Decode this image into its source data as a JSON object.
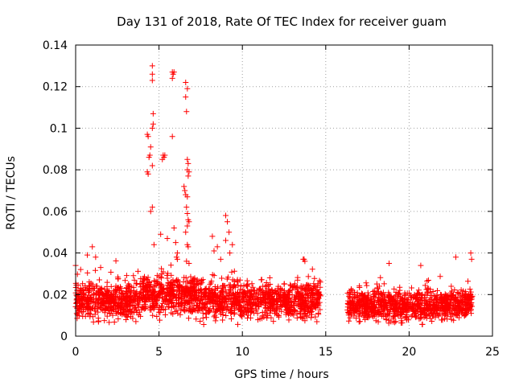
{
  "chart_data": {
    "type": "scatter",
    "title": "Day 131 of 2018, Rate Of TEC Index for receiver guam",
    "xlabel": "GPS time / hours",
    "ylabel": "ROTI / TECUs",
    "xlim": [
      0,
      25
    ],
    "ylim": [
      0,
      0.14
    ],
    "xticks": [
      "0",
      "5",
      "10",
      "15",
      "20",
      "25"
    ],
    "yticks": [
      "0",
      "0.02",
      "0.04",
      "0.06",
      "0.08",
      "0.1",
      "0.12",
      "0.14"
    ],
    "grid": true,
    "marker": "+",
    "color": "#ff0000",
    "series": [
      {
        "name": "ROTI",
        "segments": [
          {
            "x_range": [
              0,
              14.7
            ],
            "baseline": 0.017,
            "spread": 0.012
          },
          {
            "x_range": [
              16.3,
              23.8
            ],
            "baseline": 0.015,
            "spread": 0.01
          }
        ],
        "outliers": [
          [
            4.6,
            0.13
          ],
          [
            4.6,
            0.126
          ],
          [
            4.6,
            0.123
          ],
          [
            4.65,
            0.107
          ],
          [
            4.65,
            0.102
          ],
          [
            4.6,
            0.1
          ],
          [
            4.3,
            0.097
          ],
          [
            4.35,
            0.096
          ],
          [
            4.5,
            0.091
          ],
          [
            4.4,
            0.086
          ],
          [
            4.45,
            0.087
          ],
          [
            4.3,
            0.079
          ],
          [
            4.35,
            0.078
          ],
          [
            4.6,
            0.082
          ],
          [
            4.5,
            0.06
          ],
          [
            4.6,
            0.062
          ],
          [
            4.7,
            0.044
          ],
          [
            5.25,
            0.087
          ],
          [
            5.3,
            0.086
          ],
          [
            5.2,
            0.085
          ],
          [
            5.35,
            0.087
          ],
          [
            5.1,
            0.049
          ],
          [
            5.5,
            0.047
          ],
          [
            5.8,
            0.127
          ],
          [
            5.85,
            0.126
          ],
          [
            5.8,
            0.124
          ],
          [
            5.9,
            0.127
          ],
          [
            5.8,
            0.096
          ],
          [
            5.9,
            0.052
          ],
          [
            6.0,
            0.045
          ],
          [
            6.1,
            0.04
          ],
          [
            6.05,
            0.038
          ],
          [
            6.1,
            0.037
          ],
          [
            6.6,
            0.122
          ],
          [
            6.7,
            0.119
          ],
          [
            6.6,
            0.115
          ],
          [
            6.65,
            0.108
          ],
          [
            6.7,
            0.085
          ],
          [
            6.75,
            0.083
          ],
          [
            6.7,
            0.08
          ],
          [
            6.8,
            0.079
          ],
          [
            6.75,
            0.077
          ],
          [
            6.5,
            0.072
          ],
          [
            6.55,
            0.07
          ],
          [
            6.6,
            0.068
          ],
          [
            6.7,
            0.067
          ],
          [
            6.65,
            0.062
          ],
          [
            6.7,
            0.059
          ],
          [
            6.75,
            0.056
          ],
          [
            6.7,
            0.053
          ],
          [
            6.8,
            0.055
          ],
          [
            6.6,
            0.05
          ],
          [
            6.7,
            0.044
          ],
          [
            6.75,
            0.043
          ],
          [
            6.65,
            0.036
          ],
          [
            6.8,
            0.035
          ],
          [
            8.2,
            0.048
          ],
          [
            8.3,
            0.041
          ],
          [
            8.5,
            0.043
          ],
          [
            8.7,
            0.037
          ],
          [
            9.0,
            0.058
          ],
          [
            9.1,
            0.055
          ],
          [
            9.2,
            0.05
          ],
          [
            9.0,
            0.046
          ],
          [
            9.4,
            0.044
          ],
          [
            9.25,
            0.04
          ],
          [
            13.7,
            0.037
          ],
          [
            13.75,
            0.036
          ],
          [
            13.65,
            0.037
          ],
          [
            0.7,
            0.039
          ],
          [
            1.0,
            0.043
          ],
          [
            1.2,
            0.038
          ],
          [
            0.0,
            0.034
          ],
          [
            1.5,
            0.033
          ],
          [
            23.7,
            0.04
          ],
          [
            23.75,
            0.037
          ],
          [
            22.8,
            0.038
          ],
          [
            18.8,
            0.035
          ],
          [
            20.7,
            0.034
          ]
        ]
      }
    ]
  }
}
